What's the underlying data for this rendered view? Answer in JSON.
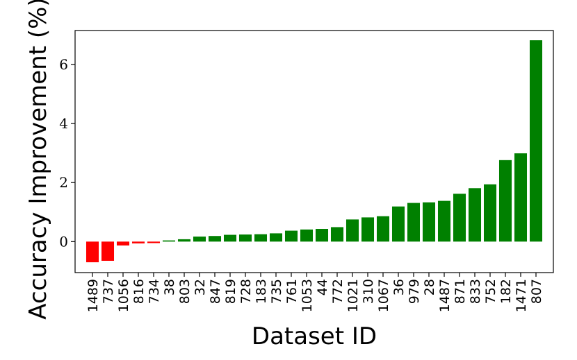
{
  "chart_data": {
    "type": "bar",
    "xlabel": "Dataset ID",
    "ylabel": "Accuracy Improvement (%)",
    "categories": [
      "1489",
      "737",
      "1056",
      "816",
      "734",
      "38",
      "803",
      "32",
      "847",
      "819",
      "728",
      "183",
      "735",
      "761",
      "1053",
      "44",
      "772",
      "1021",
      "310",
      "1067",
      "36",
      "979",
      "28",
      "1487",
      "871",
      "833",
      "752",
      "182",
      "1471",
      "807"
    ],
    "values": [
      -0.7,
      -0.65,
      -0.13,
      -0.06,
      -0.05,
      0.04,
      0.08,
      0.17,
      0.19,
      0.23,
      0.24,
      0.25,
      0.28,
      0.37,
      0.41,
      0.43,
      0.49,
      0.75,
      0.82,
      0.86,
      1.19,
      1.31,
      1.33,
      1.38,
      1.62,
      1.81,
      1.94,
      2.76,
      2.99,
      6.82
    ],
    "ylim": [
      -1.05,
      7.15
    ],
    "yticks": [
      0,
      2,
      4,
      6
    ],
    "colors": {
      "negative": "#ff0000",
      "positive": "#008000"
    },
    "grid": false,
    "legend": null
  }
}
